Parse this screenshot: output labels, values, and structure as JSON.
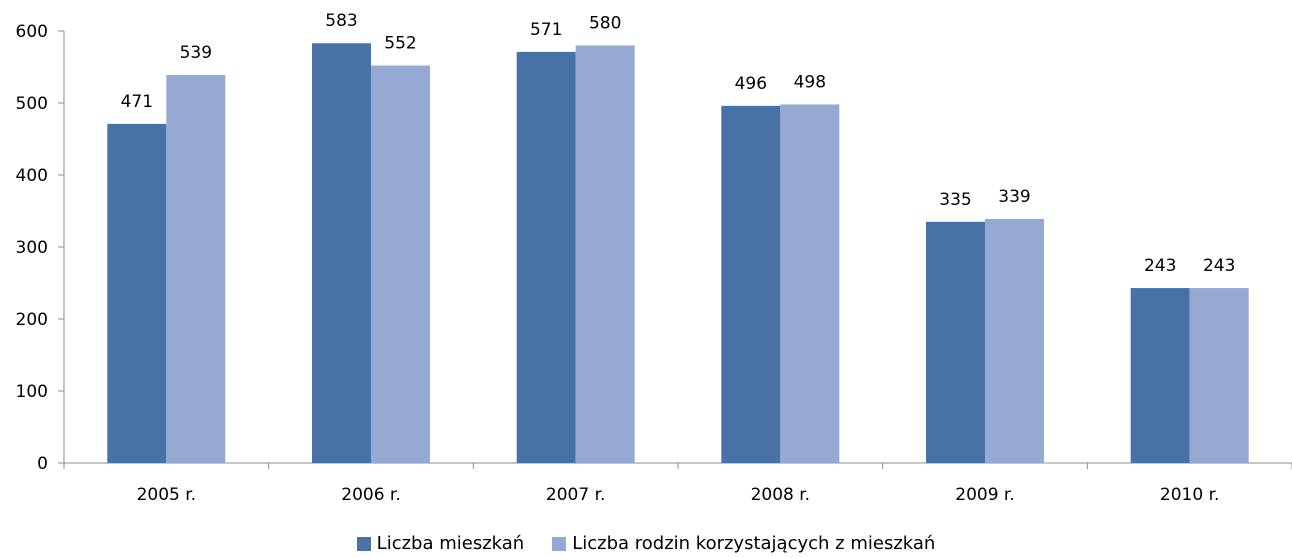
{
  "chart_data": {
    "type": "bar",
    "categories": [
      "2005 r.",
      "2006 r.",
      "2007 r.",
      "2008 r.",
      "2009 r.",
      "2010 r."
    ],
    "series": [
      {
        "name": "Liczba mieszkań",
        "values": [
          471,
          583,
          571,
          496,
          335,
          243
        ],
        "color": "#4672A8"
      },
      {
        "name": "Liczba rodzin korzystających z mieszkań",
        "values": [
          539,
          552,
          580,
          498,
          339,
          243
        ],
        "color": "#95A9D2"
      }
    ],
    "ylim": [
      0,
      600
    ],
    "yticks": [
      0,
      100,
      200,
      300,
      400,
      500,
      600
    ],
    "grid": false,
    "legend_position": "bottom",
    "data_labels": true
  }
}
